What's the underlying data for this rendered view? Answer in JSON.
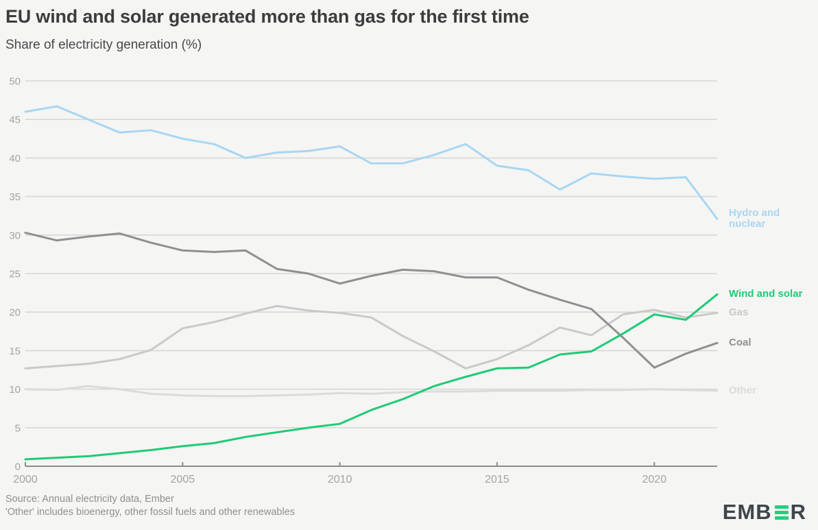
{
  "chart_data": {
    "type": "line",
    "title": "EU wind and solar generated more than gas for the first time",
    "subtitle": "Share of electricity generation (%)",
    "xlabel": "",
    "ylabel": "",
    "xlim": [
      2000,
      2022
    ],
    "ylim": [
      0,
      50
    ],
    "xticks": [
      2000,
      2005,
      2010,
      2015,
      2020
    ],
    "yticks": [
      0,
      5,
      10,
      15,
      20,
      25,
      30,
      35,
      40,
      45,
      50
    ],
    "grid": "horizontal",
    "legend_position": "right-of-line-endpoints",
    "x": [
      2000,
      2001,
      2002,
      2003,
      2004,
      2005,
      2006,
      2007,
      2008,
      2009,
      2010,
      2011,
      2012,
      2013,
      2014,
      2015,
      2016,
      2017,
      2018,
      2019,
      2020,
      2021,
      2022
    ],
    "series": [
      {
        "id": "hydro-nuclear",
        "name": "Hydro and nuclear",
        "label_lines": [
          "Hydro and",
          "nuclear"
        ],
        "color": "#a8d6f2",
        "z": 3,
        "values": [
          46.0,
          46.7,
          45.0,
          43.3,
          43.6,
          42.5,
          41.8,
          40.0,
          40.7,
          40.9,
          41.5,
          39.3,
          39.3,
          40.4,
          41.8,
          39.0,
          38.4,
          35.9,
          38.0,
          37.6,
          37.3,
          37.5,
          32.1
        ]
      },
      {
        "id": "wind-solar",
        "name": "Wind and solar",
        "label_lines": [
          "Wind and solar"
        ],
        "color": "#1ecb74",
        "z": 4,
        "values": [
          0.9,
          1.1,
          1.3,
          1.7,
          2.1,
          2.6,
          3.0,
          3.8,
          4.4,
          5.0,
          5.5,
          7.3,
          8.7,
          10.4,
          11.6,
          12.7,
          12.8,
          14.5,
          14.9,
          17.2,
          19.7,
          19.0,
          22.3
        ]
      },
      {
        "id": "gas",
        "name": "Gas",
        "label_lines": [
          "Gas"
        ],
        "color": "#c9c9c9",
        "z": 1,
        "values": [
          12.7,
          13.0,
          13.3,
          13.9,
          15.1,
          17.9,
          18.7,
          19.8,
          20.8,
          20.2,
          19.9,
          19.3,
          16.9,
          14.9,
          12.7,
          13.9,
          15.7,
          18.0,
          17.0,
          19.7,
          20.3,
          19.3,
          19.9
        ]
      },
      {
        "id": "coal",
        "name": "Coal",
        "label_lines": [
          "Coal"
        ],
        "color": "#8f8f8f",
        "z": 2,
        "values": [
          30.3,
          29.3,
          29.8,
          30.2,
          29.0,
          28.0,
          27.8,
          28.0,
          25.6,
          25.0,
          23.7,
          24.7,
          25.5,
          25.3,
          24.5,
          24.5,
          22.9,
          21.6,
          20.4,
          16.7,
          12.8,
          14.6,
          16.0
        ]
      },
      {
        "id": "other",
        "name": "Other",
        "label_lines": [
          "Other"
        ],
        "color": "#dbdbda",
        "z": 0,
        "values": [
          10.0,
          9.9,
          10.4,
          10.0,
          9.4,
          9.2,
          9.1,
          9.1,
          9.2,
          9.3,
          9.5,
          9.4,
          9.6,
          9.7,
          9.7,
          9.8,
          9.8,
          9.8,
          9.9,
          9.9,
          10.0,
          9.9,
          9.8
        ]
      }
    ]
  },
  "footer": {
    "source": "Source: Annual electricity data, Ember",
    "note": "'Other' includes bioenergy, other fossil fuels and other renewables"
  },
  "logo": {
    "prefix": "EMB",
    "green_letter": "E",
    "suffix": "R"
  },
  "colors": {
    "background": "#f5f5f4",
    "title_text": "#3c3c3c",
    "axis_text": "#a3a3a3",
    "gridline": "#d7d7d6",
    "axis_line": "#8c8c8c",
    "footer_text": "#8f8f8f",
    "logo_dark": "#3e454b",
    "logo_green": "#21d07c"
  }
}
